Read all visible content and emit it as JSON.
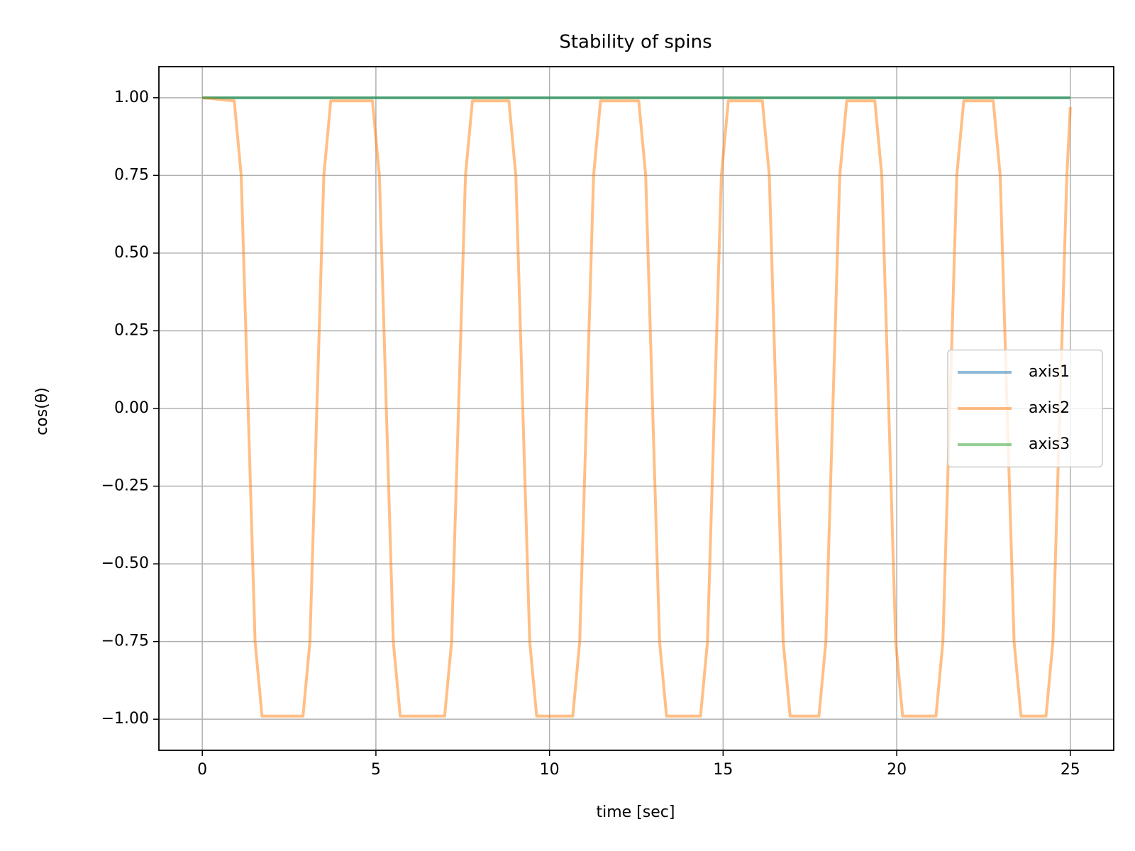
{
  "chart_data": {
    "type": "line",
    "title": "Stability of spins",
    "xlabel": "time [sec]",
    "ylabel": "cos(θ)",
    "x": [
      0,
      0.92,
      1.12,
      1.32,
      1.52,
      1.72,
      2.9,
      3.1,
      3.3,
      3.5,
      3.7,
      4.9,
      5.1,
      5.3,
      5.5,
      5.7,
      6.98,
      7.18,
      7.38,
      7.58,
      7.78,
      8.83,
      9.03,
      9.23,
      9.43,
      9.63,
      10.67,
      10.87,
      11.07,
      11.27,
      11.47,
      12.57,
      12.77,
      12.97,
      13.17,
      13.37,
      14.35,
      14.55,
      14.75,
      14.95,
      15.15,
      16.13,
      16.33,
      16.53,
      16.73,
      16.93,
      17.76,
      17.96,
      18.16,
      18.36,
      18.56,
      19.37,
      19.57,
      19.77,
      19.97,
      20.17,
      21.13,
      21.33,
      21.53,
      21.73,
      21.93,
      22.78,
      22.98,
      23.18,
      23.38,
      23.58,
      24.3,
      24.5,
      24.7,
      24.9,
      25
    ],
    "series": [
      {
        "name": "axis1",
        "color": "#1f77b4",
        "values": [
          1,
          1,
          1,
          1,
          1,
          1,
          1,
          1,
          1,
          1,
          1,
          1,
          1,
          1,
          1,
          1,
          1,
          1,
          1,
          1,
          1,
          1,
          1,
          1,
          1,
          1,
          1,
          1,
          1,
          1,
          1,
          1,
          1,
          1,
          1,
          1,
          1,
          1,
          1,
          1,
          1,
          1,
          1,
          1,
          1,
          1,
          1,
          1,
          1,
          1,
          1,
          1,
          1,
          1,
          1,
          1,
          1,
          1,
          1,
          1,
          1,
          1,
          1,
          1,
          1,
          1,
          1,
          1,
          1,
          1,
          1
        ]
      },
      {
        "name": "axis2",
        "color": "#ff7f0e",
        "values": [
          1,
          0.99,
          0.75,
          0,
          -0.75,
          -0.99,
          -0.99,
          -0.75,
          0,
          0.75,
          0.99,
          0.99,
          0.75,
          0,
          -0.75,
          -0.99,
          -0.99,
          -0.75,
          0,
          0.75,
          0.99,
          0.99,
          0.75,
          0,
          -0.75,
          -0.99,
          -0.99,
          -0.75,
          0,
          0.75,
          0.99,
          0.99,
          0.75,
          0,
          -0.75,
          -0.99,
          -0.99,
          -0.75,
          0,
          0.75,
          0.99,
          0.99,
          0.75,
          0,
          -0.75,
          -0.99,
          -0.99,
          -0.75,
          0,
          0.75,
          0.99,
          0.99,
          0.75,
          0,
          -0.75,
          -0.99,
          -0.99,
          -0.75,
          0,
          0.75,
          0.99,
          0.99,
          0.75,
          0,
          -0.75,
          -0.99,
          -0.99,
          -0.75,
          0,
          0.75,
          0.97
        ]
      },
      {
        "name": "axis3",
        "color": "#2ca02c",
        "values": [
          1,
          1,
          1,
          1,
          1,
          1,
          1,
          1,
          1,
          1,
          1,
          1,
          1,
          1,
          1,
          1,
          1,
          1,
          1,
          1,
          1,
          1,
          1,
          1,
          1,
          1,
          1,
          1,
          1,
          1,
          1,
          1,
          1,
          1,
          1,
          1,
          1,
          1,
          1,
          1,
          1,
          1,
          1,
          1,
          1,
          1,
          1,
          1,
          1,
          1,
          1,
          1,
          1,
          1,
          1,
          1,
          1,
          1,
          1,
          1,
          1,
          1,
          1,
          1,
          1,
          1,
          1,
          1,
          1,
          1,
          1
        ]
      }
    ],
    "xlim": [
      -1.25,
      26.25
    ],
    "ylim": [
      -1.1,
      1.1
    ],
    "xticks": [
      0,
      5,
      10,
      15,
      20,
      25
    ],
    "yticks": [
      {
        "value": -1,
        "label": "−1.00"
      },
      {
        "value": -0.75,
        "label": "−0.75"
      },
      {
        "value": -0.5,
        "label": "−0.50"
      },
      {
        "value": -0.25,
        "label": "−0.25"
      },
      {
        "value": 0,
        "label": "0.00"
      },
      {
        "value": 0.25,
        "label": "0.25"
      },
      {
        "value": 0.5,
        "label": "0.50"
      },
      {
        "value": 0.75,
        "label": "0.75"
      },
      {
        "value": 1,
        "label": "1.00"
      }
    ],
    "grid": true,
    "legend": "center right"
  }
}
